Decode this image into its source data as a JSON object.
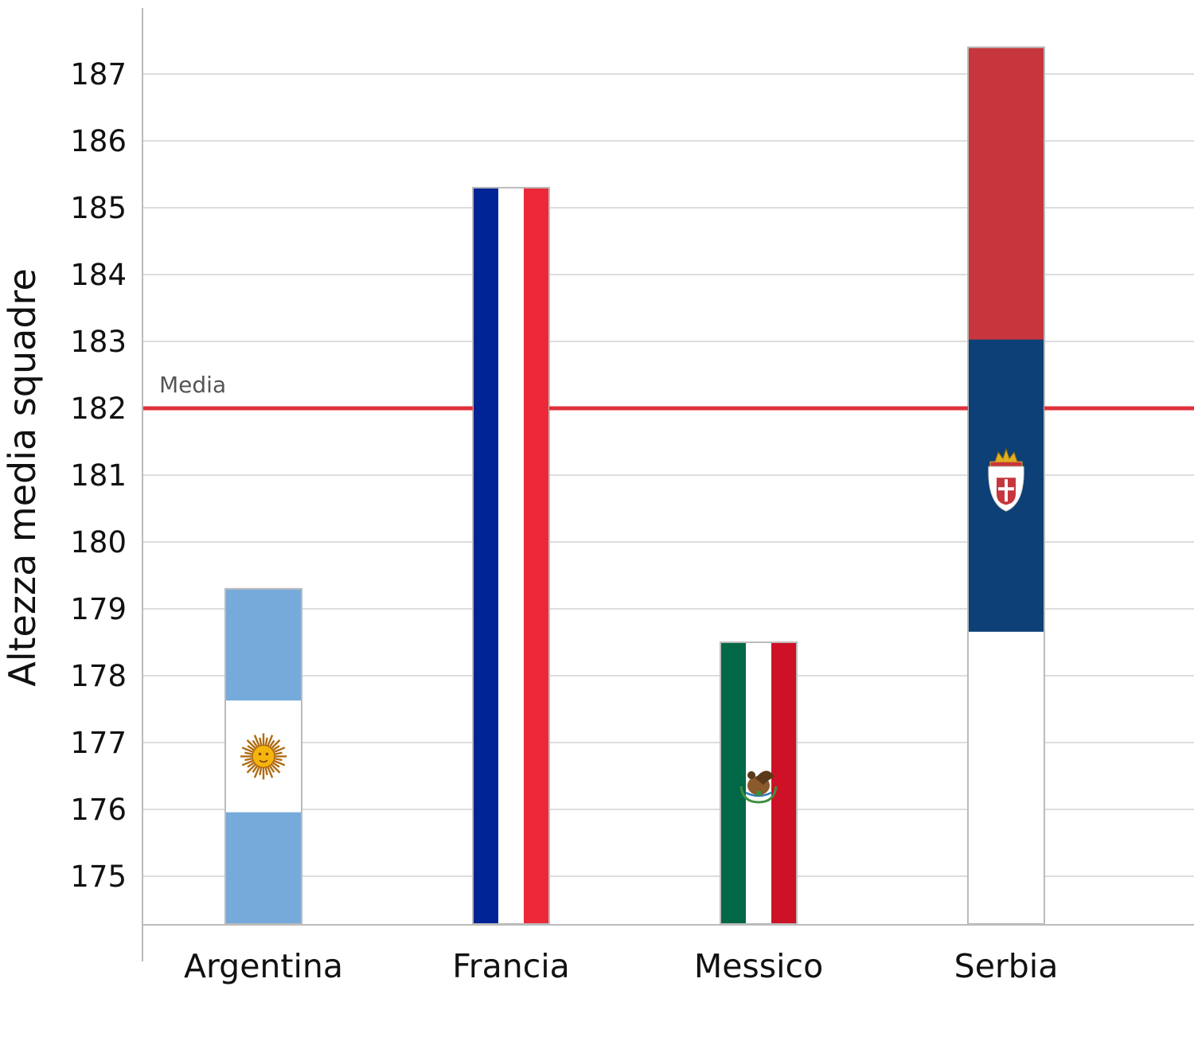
{
  "chart_data": {
    "type": "bar",
    "title": "",
    "xlabel": "",
    "ylabel": "Altezza media squadre",
    "categories": [
      "Argentina",
      "Francia",
      "Messico",
      "Serbia"
    ],
    "values": [
      179.3,
      185.3,
      178.5,
      187.4
    ],
    "ylim": [
      174.3,
      188
    ],
    "yticks": [
      "175",
      "176",
      "177",
      "178",
      "179",
      "180",
      "181",
      "182",
      "183",
      "184",
      "185",
      "186",
      "187"
    ],
    "grid": true,
    "legend": "none",
    "reference_line": {
      "label": "Media",
      "value": 182,
      "color": "#e0303c"
    },
    "bar_styles": [
      {
        "pattern": "horizontal-stripes",
        "colors": [
          "#75aadb",
          "#ffffff",
          "#75aadb"
        ],
        "emblem": "sun-icon",
        "emblem_color": "#f6b40e"
      },
      {
        "pattern": "vertical-stripes",
        "colors": [
          "#002395",
          "#ffffff",
          "#ed2939"
        ]
      },
      {
        "pattern": "vertical-stripes",
        "colors": [
          "#006847",
          "#ffffff",
          "#ce1126"
        ],
        "emblem": "eagle-icon",
        "emblem_color": "#8a5a2b"
      },
      {
        "pattern": "horizontal-stripes",
        "colors": [
          "#c6363c",
          "#0c4076",
          "#ffffff"
        ],
        "emblem": "coat-of-arms-icon",
        "emblem_color": "#c6363c"
      }
    ]
  }
}
